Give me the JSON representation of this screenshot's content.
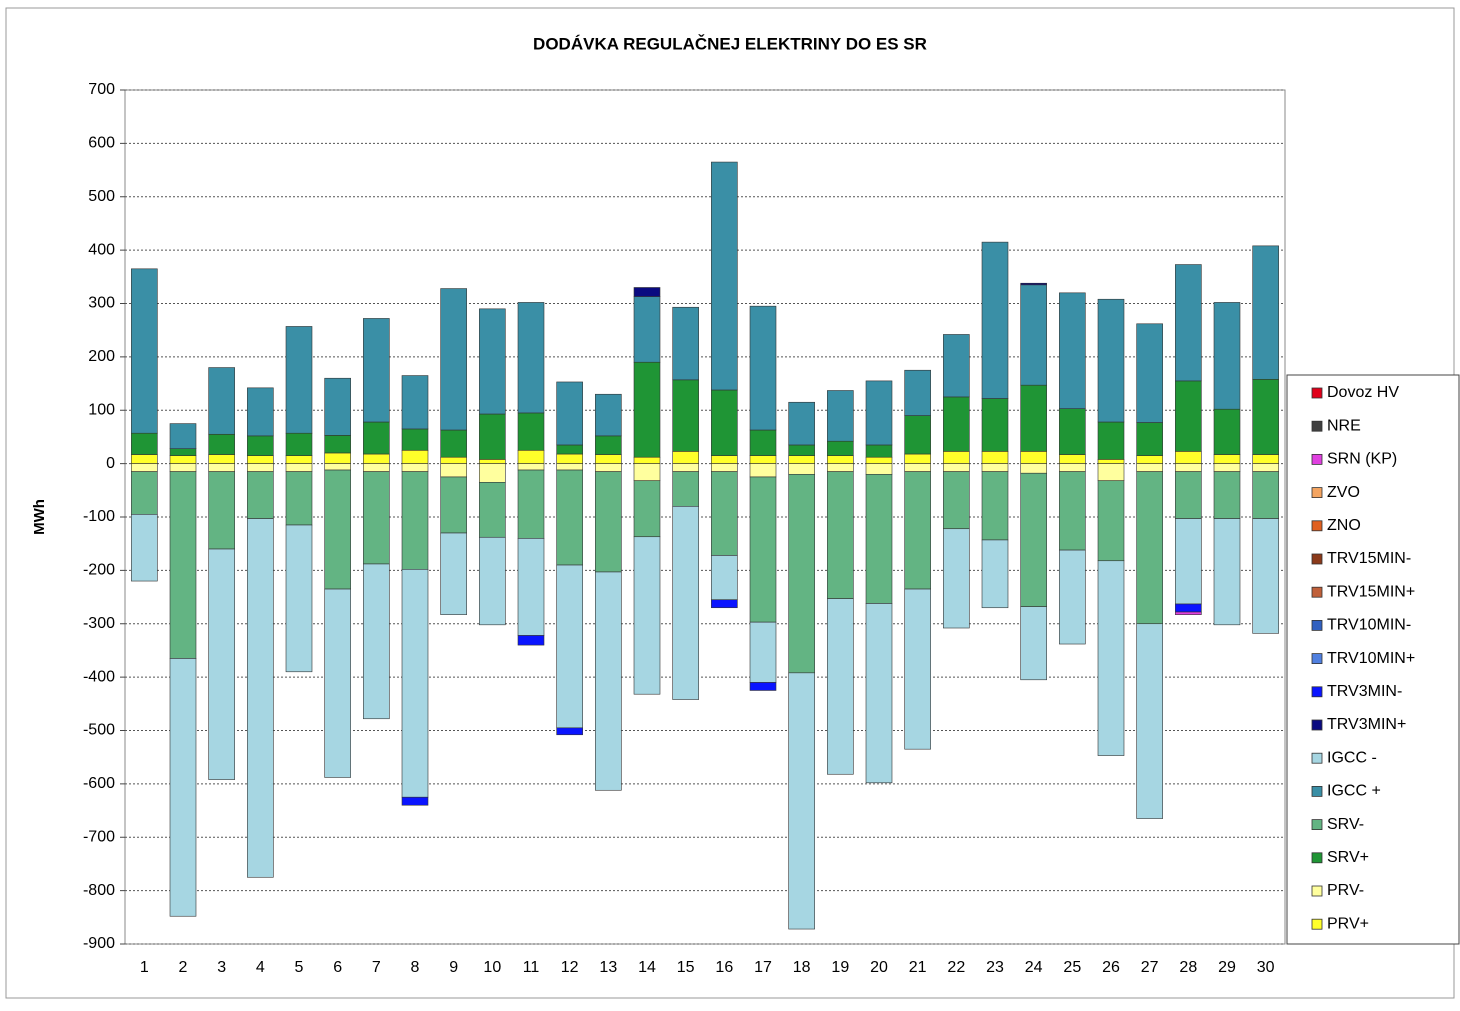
{
  "chart_data": {
    "type": "stacked_bar",
    "title": "DODÁVKA  REGULAČNEJ  ELEKTRINY  DO  ES SR",
    "y_label": "MWh",
    "categories": [
      "1",
      "2",
      "3",
      "4",
      "5",
      "6",
      "7",
      "8",
      "9",
      "10",
      "11",
      "12",
      "13",
      "14",
      "15",
      "16",
      "17",
      "18",
      "19",
      "20",
      "21",
      "22",
      "23",
      "24",
      "25",
      "26",
      "27",
      "28",
      "29",
      "30"
    ],
    "ylim": [
      -900,
      700
    ],
    "yticks": [
      -900,
      -800,
      -700,
      -600,
      -500,
      -400,
      -300,
      -200,
      -100,
      0,
      100,
      200,
      300,
      400,
      500,
      600,
      700
    ],
    "grid": true,
    "legend": "right",
    "series": [
      {
        "name": "Dovoz HV",
        "color": "#e0001a",
        "values": [
          0,
          0,
          0,
          0,
          0,
          0,
          0,
          0,
          0,
          0,
          0,
          0,
          0,
          0,
          0,
          0,
          0,
          0,
          0,
          0,
          0,
          0,
          0,
          0,
          0,
          0,
          0,
          0,
          0,
          0
        ]
      },
      {
        "name": "NRE",
        "color": "#404040",
        "values": [
          0,
          0,
          0,
          0,
          0,
          0,
          0,
          0,
          0,
          0,
          0,
          0,
          0,
          0,
          0,
          0,
          0,
          0,
          0,
          0,
          0,
          0,
          0,
          0,
          0,
          0,
          0,
          0,
          0,
          0
        ]
      },
      {
        "name": "SRN (KP)",
        "color": "#e040e0",
        "values": [
          0,
          0,
          0,
          0,
          0,
          0,
          0,
          0,
          0,
          0,
          0,
          0,
          0,
          0,
          0,
          0,
          0,
          0,
          0,
          0,
          0,
          0,
          0,
          0,
          0,
          0,
          0,
          -5,
          0,
          0
        ]
      },
      {
        "name": "ZVO",
        "color": "#f4a460",
        "values": [
          0,
          0,
          0,
          0,
          0,
          0,
          0,
          0,
          0,
          0,
          0,
          0,
          0,
          0,
          0,
          0,
          0,
          0,
          0,
          0,
          0,
          0,
          0,
          0,
          0,
          0,
          0,
          0,
          0,
          0
        ]
      },
      {
        "name": "ZNO",
        "color": "#e06020",
        "values": [
          0,
          0,
          0,
          0,
          0,
          0,
          0,
          0,
          0,
          0,
          0,
          0,
          0,
          0,
          0,
          0,
          0,
          0,
          0,
          0,
          0,
          0,
          0,
          0,
          0,
          0,
          0,
          0,
          0,
          0
        ]
      },
      {
        "name": "TRV15MIN-",
        "color": "#8b3a1a",
        "values": [
          0,
          0,
          0,
          0,
          0,
          0,
          0,
          0,
          0,
          0,
          0,
          0,
          0,
          0,
          0,
          0,
          0,
          0,
          0,
          0,
          0,
          0,
          0,
          0,
          0,
          0,
          0,
          0,
          0,
          0
        ]
      },
      {
        "name": "TRV15MIN+",
        "color": "#c0603a",
        "values": [
          0,
          0,
          0,
          0,
          0,
          0,
          0,
          0,
          0,
          0,
          0,
          0,
          0,
          0,
          0,
          0,
          0,
          0,
          0,
          0,
          0,
          0,
          0,
          0,
          0,
          0,
          0,
          0,
          0,
          0
        ]
      },
      {
        "name": "TRV10MIN-",
        "color": "#3060c0",
        "values": [
          0,
          0,
          0,
          0,
          0,
          0,
          0,
          0,
          0,
          0,
          0,
          0,
          0,
          0,
          0,
          0,
          0,
          0,
          0,
          0,
          0,
          0,
          0,
          0,
          0,
          0,
          0,
          0,
          0,
          0
        ]
      },
      {
        "name": "TRV10MIN+",
        "color": "#5080e0",
        "values": [
          0,
          0,
          0,
          0,
          0,
          0,
          0,
          0,
          0,
          0,
          0,
          0,
          0,
          0,
          0,
          0,
          0,
          0,
          0,
          0,
          0,
          0,
          0,
          0,
          0,
          0,
          0,
          0,
          0,
          0
        ]
      },
      {
        "name": "TRV3MIN-",
        "color": "#0a14ff",
        "values": [
          0,
          0,
          0,
          0,
          0,
          0,
          0,
          -15,
          0,
          0,
          -18,
          -13,
          0,
          0,
          0,
          -15,
          -15,
          0,
          0,
          0,
          0,
          0,
          0,
          0,
          0,
          0,
          0,
          -15,
          0,
          0
        ]
      },
      {
        "name": "TRV3MIN+",
        "color": "#0a0a80",
        "values": [
          0,
          0,
          0,
          0,
          0,
          0,
          0,
          0,
          0,
          0,
          0,
          0,
          0,
          17,
          0,
          0,
          0,
          0,
          0,
          0,
          0,
          0,
          0,
          3,
          0,
          0,
          0,
          0,
          0,
          0
        ]
      },
      {
        "name": "IGCC -",
        "color": "#a6d6e2",
        "values": [
          -125,
          -483,
          -432,
          -672,
          -275,
          -353,
          -290,
          -427,
          -153,
          -164,
          -182,
          -305,
          -409,
          -295,
          -362,
          -83,
          -113,
          -480,
          -329,
          -336,
          -300,
          -186,
          -127,
          -137,
          -176,
          -365,
          -365,
          -160,
          -199,
          -215
        ]
      },
      {
        "name": "IGCC +",
        "color": "#3a8fa6",
        "values": [
          308,
          47,
          125,
          90,
          200,
          107,
          194,
          100,
          265,
          197,
          207,
          118,
          78,
          123,
          136,
          427,
          232,
          80,
          95,
          120,
          85,
          117,
          293,
          188,
          217,
          230,
          185,
          218,
          200,
          250
        ]
      },
      {
        "name": "SRV-",
        "color": "#63b483",
        "values": [
          -80,
          -350,
          -145,
          -88,
          -100,
          -223,
          -173,
          -183,
          -105,
          -103,
          -128,
          -178,
          -188,
          -105,
          -65,
          -157,
          -272,
          -372,
          -238,
          -242,
          -220,
          -107,
          -128,
          -250,
          -147,
          -150,
          -285,
          -88,
          -88,
          -88
        ]
      },
      {
        "name": "SRV+",
        "color": "#1f9535",
        "values": [
          40,
          13,
          38,
          37,
          42,
          33,
          60,
          40,
          51,
          85,
          70,
          17,
          35,
          178,
          134,
          123,
          48,
          20,
          27,
          23,
          72,
          102,
          99,
          124,
          86,
          70,
          62,
          132,
          85,
          141
        ]
      },
      {
        "name": "PRV-",
        "color": "#ffff9e",
        "values": [
          -15,
          -15,
          -15,
          -15,
          -15,
          -12,
          -15,
          -15,
          -25,
          -35,
          -12,
          -12,
          -15,
          -32,
          -15,
          -15,
          -25,
          -20,
          -15,
          -20,
          -15,
          -15,
          -15,
          -18,
          -15,
          -32,
          -15,
          -15,
          -15,
          -15
        ]
      },
      {
        "name": "PRV+",
        "color": "#ffff2a",
        "values": [
          17,
          15,
          17,
          15,
          15,
          20,
          18,
          25,
          12,
          8,
          25,
          18,
          17,
          12,
          23,
          15,
          15,
          15,
          15,
          12,
          18,
          23,
          23,
          23,
          17,
          8,
          15,
          23,
          17,
          17
        ]
      }
    ]
  }
}
